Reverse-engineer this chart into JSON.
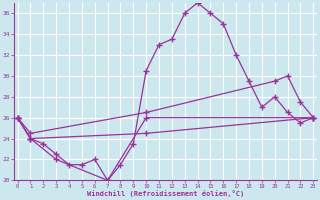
{
  "xlabel": "Windchill (Refroidissement éolien,°C)",
  "background_color": "#cce8ee",
  "line_color": "#993399",
  "grid_color": "#ffffff",
  "series1_x": [
    0,
    1,
    2,
    3,
    4,
    5,
    6,
    7,
    8,
    9,
    10,
    11,
    12,
    13,
    14,
    15,
    16,
    17,
    18,
    19,
    20,
    21,
    22,
    23
  ],
  "series1_y": [
    26,
    24,
    23.5,
    22.5,
    21.5,
    21.5,
    22,
    20,
    21.5,
    23.5,
    30.5,
    33,
    33.5,
    36,
    37,
    36,
    35,
    32,
    29.5,
    27,
    28,
    26.5,
    25.5,
    26
  ],
  "series2_x": [
    0,
    1,
    3,
    7,
    10,
    23
  ],
  "series2_y": [
    26,
    24,
    22,
    20,
    26,
    26
  ],
  "series3_x": [
    0,
    1,
    10,
    20,
    21,
    22,
    23
  ],
  "series3_y": [
    26,
    24.5,
    26.5,
    29.5,
    30,
    27.5,
    26
  ],
  "series4_x": [
    0,
    1,
    10,
    23
  ],
  "series4_y": [
    26,
    24,
    24.5,
    26
  ],
  "ylim": [
    20,
    37
  ],
  "xlim": [
    -0.3,
    23.3
  ],
  "yticks": [
    20,
    22,
    24,
    26,
    28,
    30,
    32,
    34,
    36
  ],
  "xticks": [
    0,
    1,
    2,
    3,
    4,
    5,
    6,
    7,
    8,
    9,
    10,
    11,
    12,
    13,
    14,
    15,
    16,
    17,
    18,
    19,
    20,
    21,
    22,
    23
  ]
}
